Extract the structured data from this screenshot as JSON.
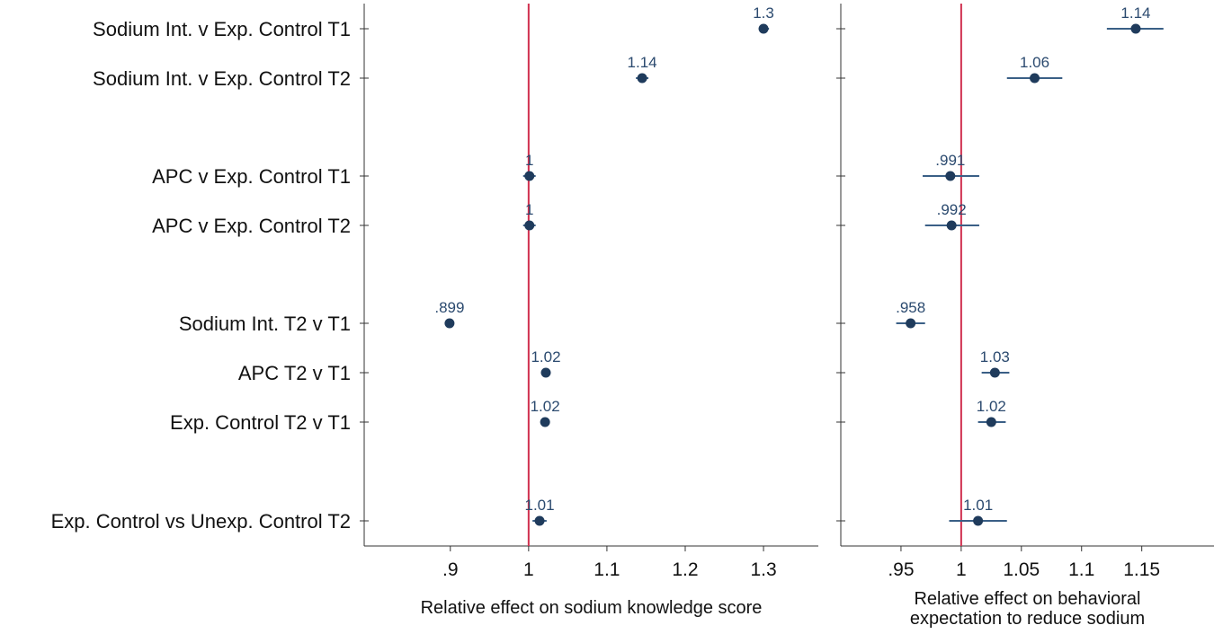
{
  "chart_data": {
    "type": "forest",
    "rows": [
      "Sodium Int. v Exp. Control T1",
      "Sodium Int. v Exp. Control T2",
      "APC v Exp. Control T1",
      "APC v Exp. Control T2",
      "Sodium Int. T2 v T1",
      "APC T2 v T1",
      "Exp. Control T2 v T1",
      "Exp. Control vs Unexp. Control T2"
    ],
    "reference_line": 1,
    "colors": {
      "point": "#1f3b5c",
      "ci": "#3a5f86",
      "label": "#2b4a6f",
      "reference": "#d0304f",
      "axis": "#333333"
    },
    "panels": [
      {
        "xlabel_lines": [
          "Relative effect on sodium knowledge score"
        ],
        "xlim": [
          0.79,
          1.37
        ],
        "ticks": [
          0.9,
          1,
          1.1,
          1.2,
          1.3
        ],
        "tick_labels": [
          ".9",
          "1",
          "1.1",
          "1.2",
          "1.3"
        ],
        "estimates": [
          1.3,
          1.145,
          1.001,
          1.001,
          0.899,
          1.022,
          1.021,
          1.014
        ],
        "ci_low": [
          1.294,
          1.137,
          0.993,
          0.993,
          0.896,
          1.019,
          1.018,
          1.005
        ],
        "ci_high": [
          1.307,
          1.153,
          1.009,
          1.009,
          0.902,
          1.025,
          1.024,
          1.023
        ],
        "labels": [
          "1.3",
          "1.14",
          "1",
          "1",
          ".899",
          "1.02",
          "1.02",
          "1.01"
        ]
      },
      {
        "xlabel_lines": [
          "Relative effect on behavioral",
          "expectation to reduce sodium"
        ],
        "xlim": [
          0.9,
          1.21
        ],
        "ticks": [
          0.95,
          1,
          1.05,
          1.1,
          1.15
        ],
        "tick_labels": [
          ".95",
          "1",
          "1.05",
          "1.1",
          "1.15"
        ],
        "estimates": [
          1.145,
          1.061,
          0.991,
          0.992,
          0.958,
          1.028,
          1.025,
          1.014
        ],
        "ci_low": [
          1.121,
          1.038,
          0.968,
          0.97,
          0.946,
          1.017,
          1.014,
          0.99
        ],
        "ci_high": [
          1.168,
          1.084,
          1.015,
          1.015,
          0.97,
          1.04,
          1.037,
          1.038
        ],
        "labels": [
          "1.14",
          "1.06",
          ".991",
          ".992",
          ".958",
          "1.03",
          "1.02",
          "1.01"
        ]
      }
    ]
  }
}
